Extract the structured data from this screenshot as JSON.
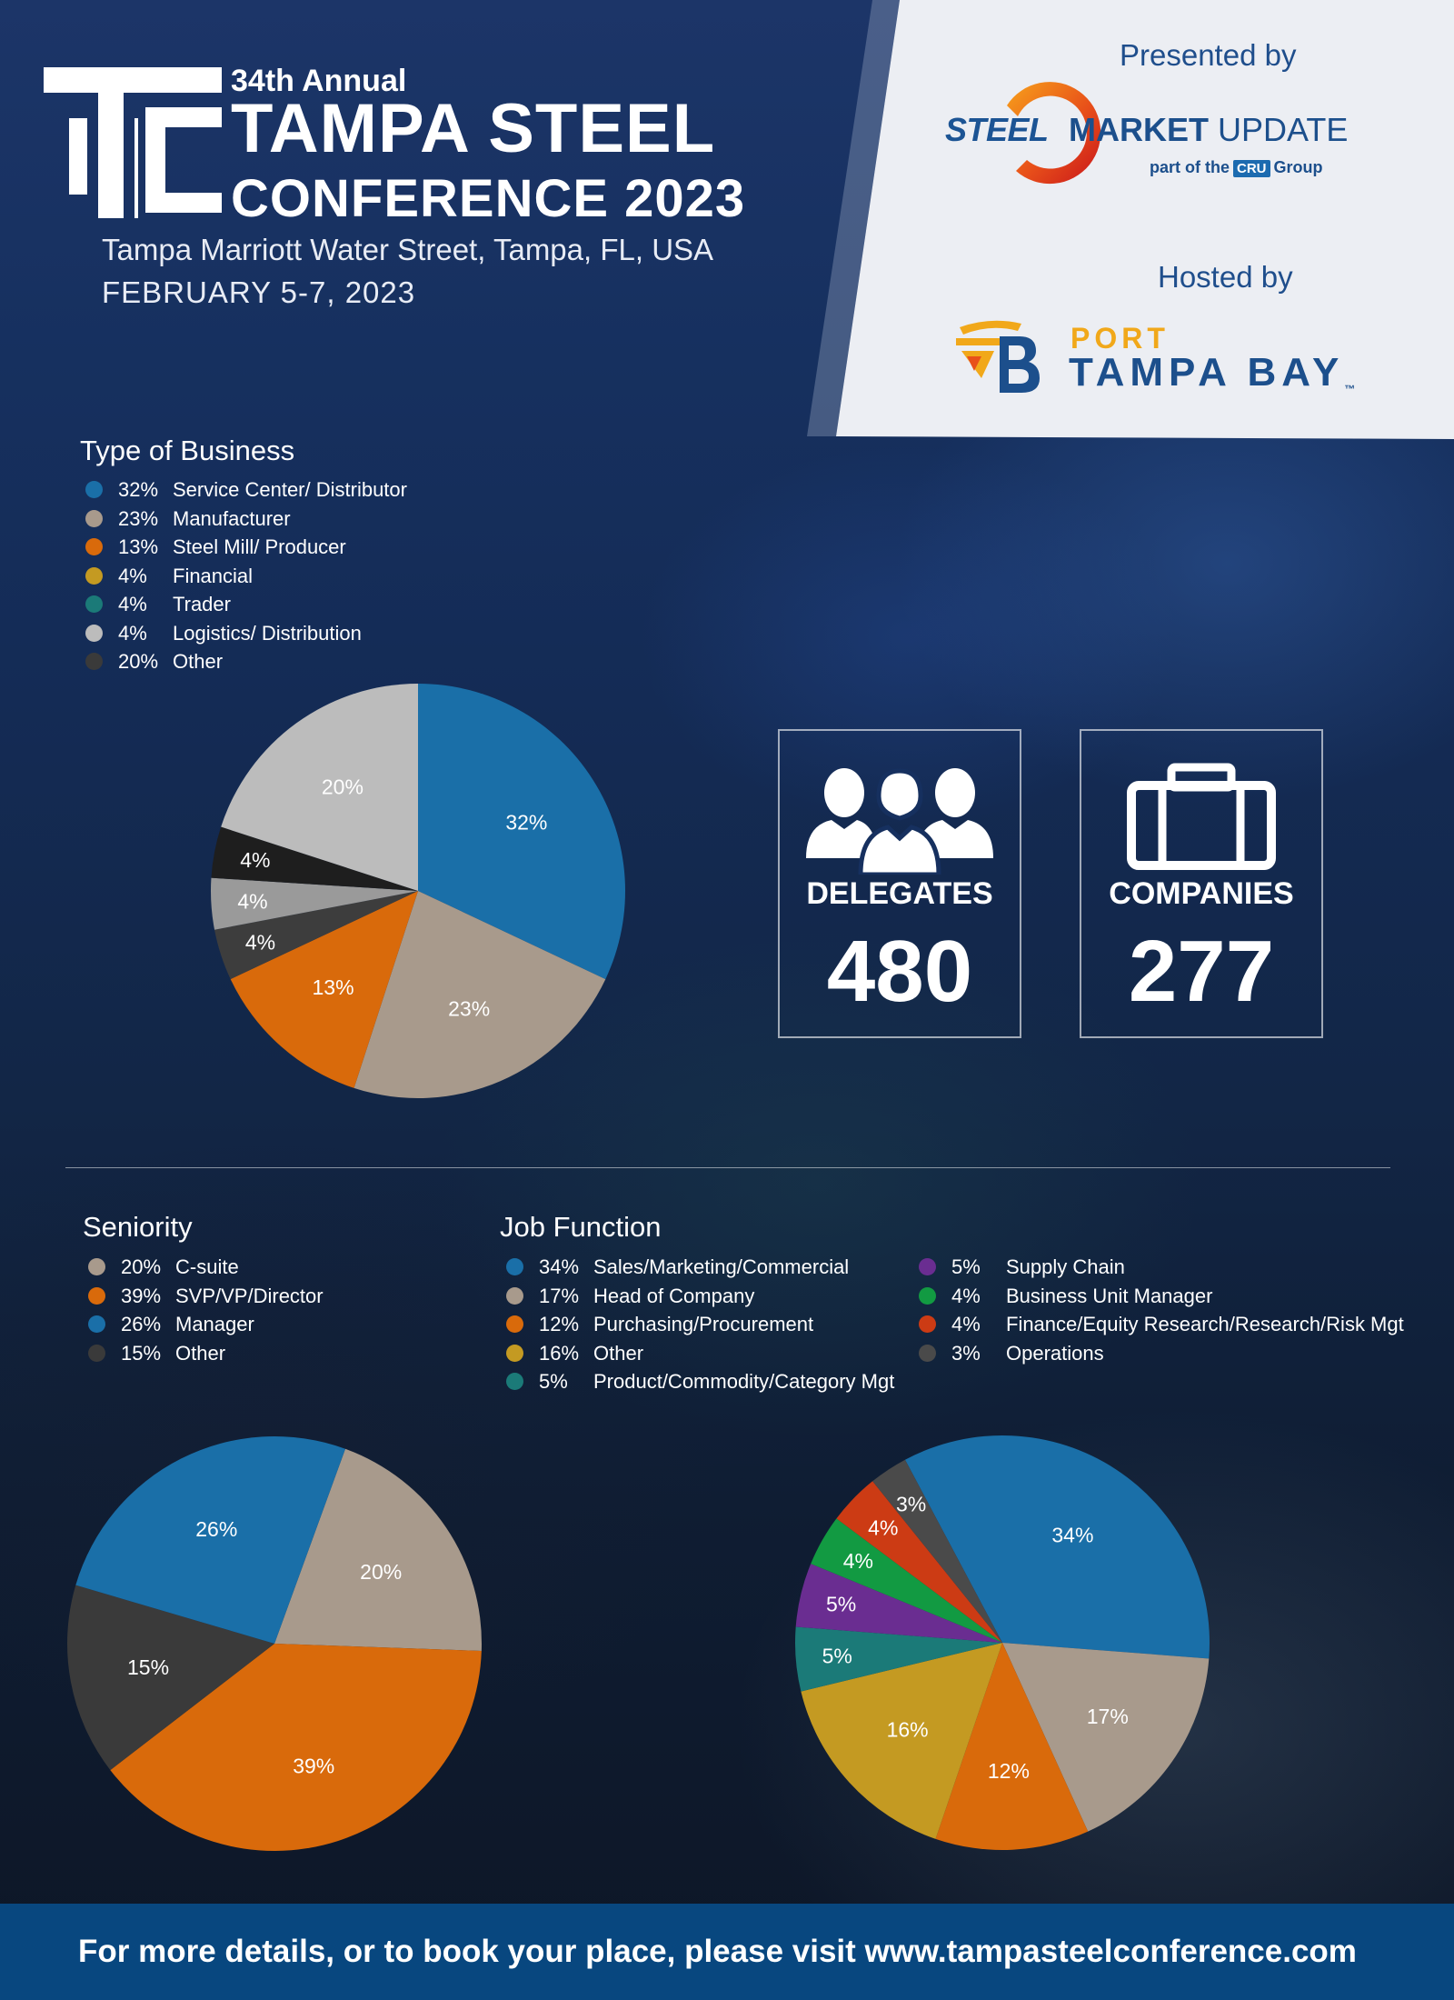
{
  "header": {
    "annual": "34th Annual",
    "title_line1": "TAMPA STEEL",
    "title_line2": "CONFERENCE 2023",
    "venue": "Tampa Marriott Water Street, Tampa, FL, USA",
    "dates": "FEBRUARY 5-7, 2023"
  },
  "sponsors": {
    "presented_by": "Presented by",
    "smu_steel": "STEEL",
    "smu_market": "MARKET",
    "smu_update": "UPDATE",
    "smu_part_of": "part of the",
    "smu_cru": "CRU",
    "smu_group": "Group",
    "hosted_by": "Hosted by",
    "port": "PORT",
    "tampa_bay": "TAMPA BAY",
    "tm": "™"
  },
  "stats": {
    "delegates_label": "DELEGATES",
    "delegates_value": "480",
    "companies_label": "COMPANIES",
    "companies_value": "277"
  },
  "footer": {
    "text": "For more details, or to book your place, please visit www.tampasteelconference.com"
  },
  "colors": {
    "blue": "#1a6fa8",
    "taupe": "#a89a8c",
    "orange": "#d96a0b",
    "gold": "#c49a22",
    "teal": "#1b7a78",
    "lightgray": "#bcbcbc",
    "darkgray": "#3a3a3a",
    "black": "#1e1e1e",
    "midgray": "#9a9a9a",
    "purple": "#6a2d91",
    "green": "#129a42",
    "red": "#cc3b14",
    "opsgray": "#4a4a4a"
  },
  "chart_data": [
    {
      "type": "pie",
      "title": "Type of Business",
      "legend": [
        {
          "pct": "32%",
          "label": "Service Center/ Distributor",
          "color": "#1a6fa8"
        },
        {
          "pct": "23%",
          "label": "Manufacturer",
          "color": "#a89a8c"
        },
        {
          "pct": "13%",
          "label": "Steel Mill/ Producer",
          "color": "#d96a0b"
        },
        {
          "pct": "4%",
          "label": "Financial",
          "color": "#c49a22"
        },
        {
          "pct": "4%",
          "label": "Trader",
          "color": "#1b7a78"
        },
        {
          "pct": "4%",
          "label": "Logistics/ Distribution",
          "color": "#bcbcbc"
        },
        {
          "pct": "20%",
          "label": "Other",
          "color": "#3a3a3a"
        }
      ],
      "slices": [
        {
          "value": 32,
          "label": "32%",
          "color": "#1a6fa8"
        },
        {
          "value": 23,
          "label": "23%",
          "color": "#a89a8c"
        },
        {
          "value": 13,
          "label": "13%",
          "color": "#d96a0b"
        },
        {
          "value": 4,
          "label": "4%",
          "color": "#3d3d3d"
        },
        {
          "value": 4,
          "label": "4%",
          "color": "#9a9a9a"
        },
        {
          "value": 4,
          "label": "4%",
          "color": "#1e1e1e"
        },
        {
          "value": 20,
          "label": "20%",
          "color": "#bcbcbc"
        }
      ]
    },
    {
      "type": "pie",
      "title": "Seniority",
      "legend": [
        {
          "pct": "20%",
          "label": "C-suite",
          "color": "#a89a8c"
        },
        {
          "pct": "39%",
          "label": "SVP/VP/Director",
          "color": "#d96a0b"
        },
        {
          "pct": "26%",
          "label": "Manager",
          "color": "#1a6fa8"
        },
        {
          "pct": "15%",
          "label": "Other",
          "color": "#3a3a3a"
        }
      ],
      "slices": [
        {
          "value": 20,
          "label": "20%",
          "color": "#a89a8c"
        },
        {
          "value": 39,
          "label": "39%",
          "color": "#d96a0b"
        },
        {
          "value": 15,
          "label": "15%",
          "color": "#3a3a3a"
        },
        {
          "value": 26,
          "label": "26%",
          "color": "#1a6fa8"
        }
      ]
    },
    {
      "type": "pie",
      "title": "Job Function",
      "legend": [
        {
          "pct": "34%",
          "label": "Sales/Marketing/Commercial",
          "color": "#1a6fa8"
        },
        {
          "pct": "17%",
          "label": "Head of Company",
          "color": "#a89a8c"
        },
        {
          "pct": "12%",
          "label": "Purchasing/Procurement",
          "color": "#d96a0b"
        },
        {
          "pct": "16%",
          "label": "Other",
          "color": "#c49a22"
        },
        {
          "pct": "5%",
          "label": "Product/Commodity/Category Mgt",
          "color": "#1b7a78"
        },
        {
          "pct": "5%",
          "label": "Supply Chain",
          "color": "#6a2d91"
        },
        {
          "pct": "4%",
          "label": "Business Unit Manager",
          "color": "#129a42"
        },
        {
          "pct": "4%",
          "label": "Finance/Equity Research/Research/Risk Mgt",
          "color": "#cc3b14"
        },
        {
          "pct": "3%",
          "label": "Operations",
          "color": "#4a4a4a"
        }
      ],
      "slices": [
        {
          "value": 34,
          "label": "34%",
          "color": "#1a6fa8"
        },
        {
          "value": 17,
          "label": "17%",
          "color": "#a89a8c"
        },
        {
          "value": 12,
          "label": "12%",
          "color": "#d96a0b"
        },
        {
          "value": 16,
          "label": "16%",
          "color": "#c49a22"
        },
        {
          "value": 5,
          "label": "5%",
          "color": "#1b7a78"
        },
        {
          "value": 5,
          "label": "5%",
          "color": "#6a2d91"
        },
        {
          "value": 4,
          "label": "4%",
          "color": "#129a42"
        },
        {
          "value": 4,
          "label": "4%",
          "color": "#cc3b14"
        },
        {
          "value": 3,
          "label": "3%",
          "color": "#4a4a4a"
        }
      ]
    }
  ]
}
